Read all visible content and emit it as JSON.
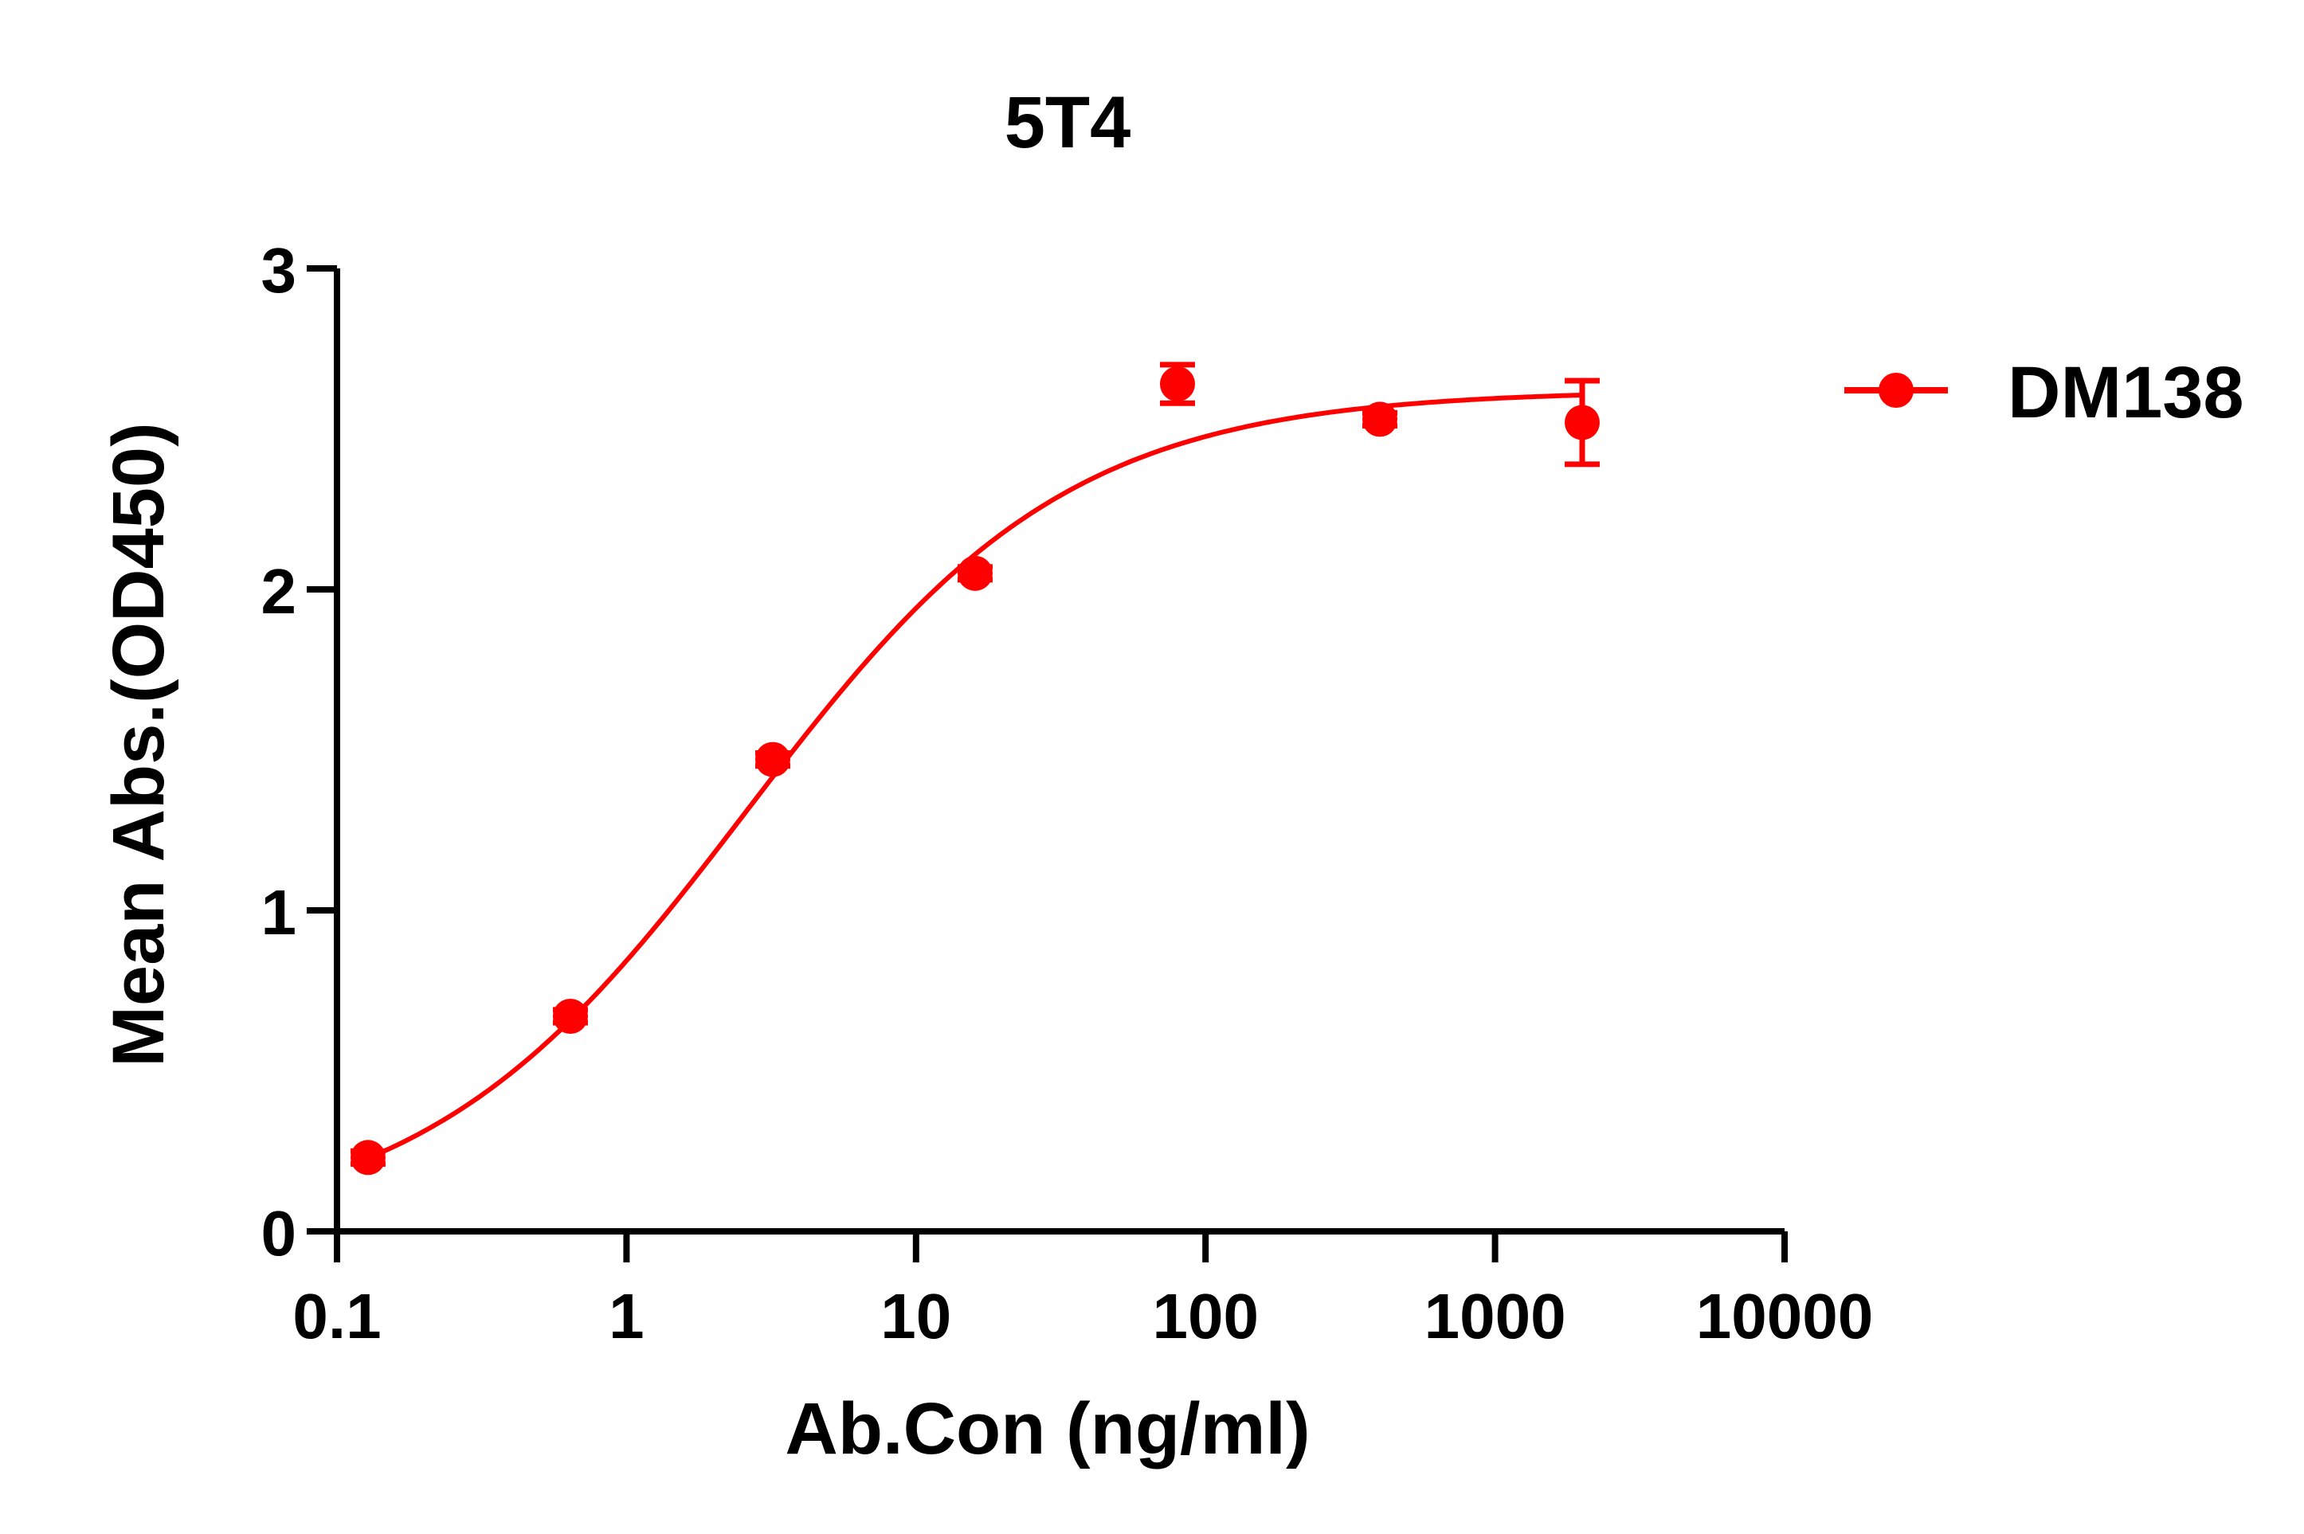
{
  "chart_data": {
    "type": "scatter",
    "title": "5T4",
    "xlabel": "Ab.Con (ng/ml)",
    "ylabel": "Mean Abs.(OD450)",
    "x_scale": "log",
    "xlim": [
      0.1,
      10000
    ],
    "ylim": [
      0,
      3
    ],
    "x_ticks": [
      0.1,
      1,
      10,
      100,
      1000,
      10000
    ],
    "x_tick_labels": [
      "0.1",
      "1",
      "10",
      "100",
      "1000",
      "10000"
    ],
    "y_ticks": [
      0,
      1,
      2,
      3
    ],
    "y_tick_labels": [
      "0",
      "1",
      "2",
      "3"
    ],
    "grid": false,
    "legend_position": "top-right",
    "color": "#ff0000",
    "series": [
      {
        "name": "DM138",
        "x": [
          0.128,
          0.64,
          3.2,
          16,
          80,
          400,
          2000
        ],
        "y": [
          0.23,
          0.67,
          1.47,
          2.05,
          2.64,
          2.53,
          2.52
        ],
        "error": [
          0.02,
          0.02,
          0.02,
          0.02,
          0.06,
          0.02,
          0.13
        ],
        "fit": {
          "model": "4PL",
          "bottom": 0.0,
          "top": 2.62,
          "ec50": 2.6,
          "hill": 0.78
        }
      }
    ]
  }
}
